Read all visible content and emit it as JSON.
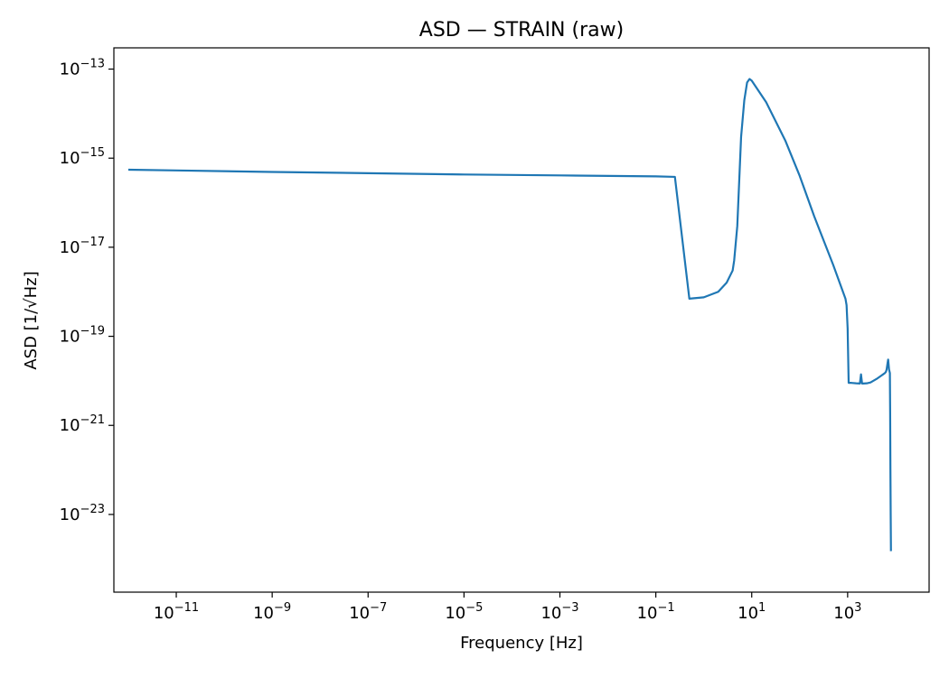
{
  "chart_data": {
    "type": "line",
    "title": "ASD — STRAIN (raw)",
    "xlabel": "Frequency [Hz]",
    "ylabel": "ASD [1/√Hz]",
    "x_scale": "log",
    "y_scale": "log",
    "xlim": [
      5e-13,
      50000.0
    ],
    "ylim": [
      1.8e-25,
      3e-13
    ],
    "grid": false,
    "x_tick_labels": [
      {
        "base": "10",
        "exp": "−11",
        "value": 1e-11
      },
      {
        "base": "10",
        "exp": "−9",
        "value": 1e-09
      },
      {
        "base": "10",
        "exp": "−7",
        "value": 1e-07
      },
      {
        "base": "10",
        "exp": "−5",
        "value": 1e-05
      },
      {
        "base": "10",
        "exp": "−3",
        "value": 0.001
      },
      {
        "base": "10",
        "exp": "−1",
        "value": 0.1
      },
      {
        "base": "10",
        "exp": "1",
        "value": 10
      },
      {
        "base": "10",
        "exp": "3",
        "value": 1000
      }
    ],
    "y_tick_labels": [
      {
        "base": "10",
        "exp": "−13",
        "value": 1e-13
      },
      {
        "base": "10",
        "exp": "−15",
        "value": 1e-15
      },
      {
        "base": "10",
        "exp": "−17",
        "value": 1e-17
      },
      {
        "base": "10",
        "exp": "−19",
        "value": 1e-19
      },
      {
        "base": "10",
        "exp": "−21",
        "value": 1e-21
      },
      {
        "base": "10",
        "exp": "−23",
        "value": 1e-23
      }
    ],
    "series": [
      {
        "color": "#1f77b4",
        "x": [
          1e-12,
          1e-11,
          1e-09,
          1e-07,
          1e-05,
          0.001,
          0.1,
          0.25,
          0.5,
          1,
          2,
          3,
          4,
          4.3,
          5,
          6,
          7,
          8,
          9,
          10,
          20,
          50,
          100,
          200,
          500,
          900,
          950,
          1000,
          1050,
          1200,
          1500,
          1800,
          1900,
          2000,
          2100,
          2500,
          3000,
          4000,
          5000,
          5500,
          6000,
          6300,
          6500,
          6800,
          7000,
          7300,
          7600,
          7700,
          7800,
          7900,
          8000
        ],
        "y": [
          5.5e-16,
          5.3e-16,
          4.9e-16,
          4.6e-16,
          4.3e-16,
          4.1e-16,
          3.9e-16,
          3.8e-16,
          7e-19,
          7.5e-19,
          1e-18,
          1.6e-18,
          3e-18,
          5e-18,
          3e-17,
          3e-15,
          2e-14,
          5e-14,
          6e-14,
          5.5e-14,
          1.8e-14,
          2.5e-15,
          4e-16,
          5e-17,
          4e-18,
          7e-19,
          5e-19,
          1.5e-19,
          9e-21,
          9e-21,
          8.8e-21,
          8.7e-21,
          1.4e-20,
          8.7e-21,
          8.7e-21,
          8.8e-21,
          9.2e-21,
          1.1e-20,
          1.3e-20,
          1.4e-20,
          1.5e-20,
          1.6e-20,
          1.8e-20,
          2.5e-20,
          3e-20,
          1.8e-20,
          1.5e-20,
          2e-21,
          1e-22,
          1e-23,
          1.5e-24
        ]
      }
    ]
  }
}
